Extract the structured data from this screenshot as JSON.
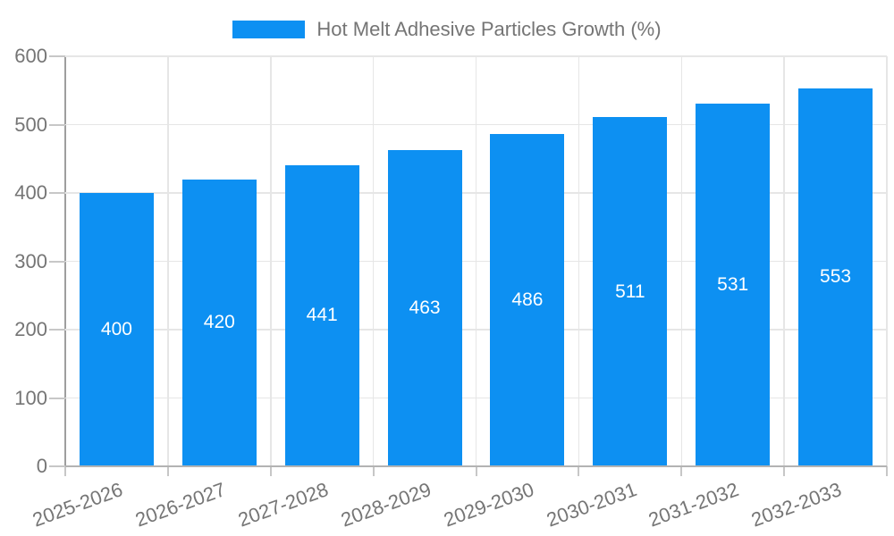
{
  "legend": {
    "label": "Hot Melt Adhesive Particles Growth (%)"
  },
  "chart_data": {
    "type": "bar",
    "title": "Hot Melt Adhesive Particles Growth (%)",
    "categories": [
      "2025-2026",
      "2026-2027",
      "2027-2028",
      "2028-2029",
      "2029-2030",
      "2030-2031",
      "2031-2032",
      "2032-2033"
    ],
    "values": [
      400,
      420,
      441,
      463,
      486,
      511,
      531,
      553
    ],
    "value_labels": [
      "400",
      "420",
      "441",
      "463",
      "486",
      "511",
      "531",
      "553"
    ],
    "xlabel": "",
    "ylabel": "",
    "ylim": [
      0,
      600
    ],
    "y_ticks": [
      0,
      100,
      200,
      300,
      400,
      500,
      600
    ],
    "grid": true,
    "legend_position": "top",
    "x_label_rotation_deg": -20,
    "series_color": "#0d90f2",
    "value_label_color": "#ffffff"
  },
  "colors": {
    "background": "#ffffff",
    "bar": "#0d90f2",
    "axis_text": "#757575",
    "gridline": "#e6e6e6",
    "axis_line": "#9e9e9e",
    "baseline": "#b3b3b3",
    "tick": "#c7c7c7"
  }
}
